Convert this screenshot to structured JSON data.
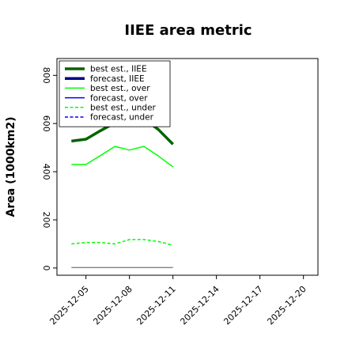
{
  "chart_data": {
    "type": "line",
    "title": "IIEE area metric",
    "xlabel": "",
    "ylabel": "Area (1000km2)",
    "x_dates": [
      "2025-12-04",
      "2025-12-05",
      "2025-12-06",
      "2025-12-07",
      "2025-12-08",
      "2025-12-09",
      "2025-12-10",
      "2025-12-11"
    ],
    "xlim": [
      "2025-12-03",
      "2025-12-21"
    ],
    "ylim": [
      -30,
      870
    ],
    "x_tick_labels": [
      "2025-12-05",
      "2025-12-08",
      "2025-12-11",
      "2025-12-14",
      "2025-12-17",
      "2025-12-20"
    ],
    "highlighted_tick": "2025-12-11",
    "y_tick_labels": [
      "0",
      "200",
      "400",
      "600",
      "800"
    ],
    "y_ticks": [
      0,
      200,
      400,
      600,
      800
    ],
    "grid": false,
    "legend_position": "top-left",
    "series": [
      {
        "name": "best est., IIEE",
        "color": "#006400",
        "style": "solid",
        "weight": "thick",
        "values": [
          527,
          535,
          570,
          603,
          607,
          620,
          575,
          514
        ]
      },
      {
        "name": "forecast, IIEE",
        "color": "#00008b",
        "style": "solid",
        "weight": "thick",
        "values": []
      },
      {
        "name": "best est., over",
        "color": "#00ff00",
        "style": "solid",
        "weight": "normal",
        "values": [
          430,
          430,
          467,
          505,
          490,
          505,
          465,
          420
        ]
      },
      {
        "name": "forecast, over",
        "color": "#0000ff",
        "style": "solid",
        "weight": "normal",
        "values": []
      },
      {
        "name": "best est., under",
        "color": "#00ff00",
        "style": "dashed",
        "weight": "normal",
        "values": [
          100,
          106,
          106,
          100,
          118,
          118,
          110,
          94
        ]
      },
      {
        "name": "forecast, under",
        "color": "#0000ff",
        "style": "dashed",
        "weight": "normal",
        "values": []
      }
    ],
    "unlabeled_line": {
      "color": "#808080",
      "values": [
        2,
        2,
        2,
        2,
        2,
        2,
        2,
        2
      ]
    }
  },
  "colors": {
    "highlight_tick": "#228b22",
    "axis": "#000000"
  }
}
